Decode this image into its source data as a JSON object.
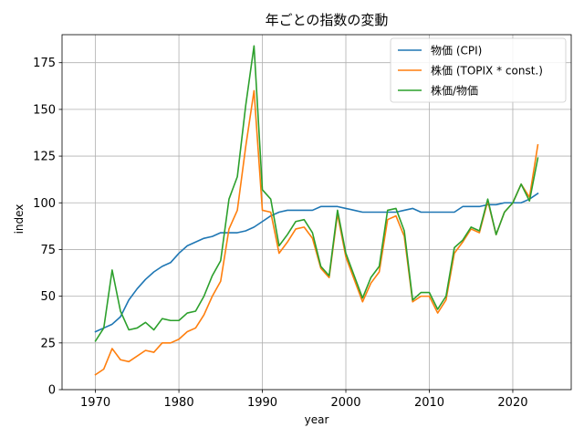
{
  "chart_data": {
    "type": "line",
    "title": "年ごとの指数の変動",
    "xlabel": "year",
    "ylabel": "index",
    "xlim": [
      1966,
      2027
    ],
    "ylim": [
      0,
      190
    ],
    "xticks": [
      1970,
      1980,
      1990,
      2000,
      2010,
      2020
    ],
    "yticks": [
      0,
      25,
      50,
      75,
      100,
      125,
      150,
      175
    ],
    "grid": true,
    "legend_position": "top-right",
    "x": [
      1970,
      1971,
      1972,
      1973,
      1974,
      1975,
      1976,
      1977,
      1978,
      1979,
      1980,
      1981,
      1982,
      1983,
      1984,
      1985,
      1986,
      1987,
      1988,
      1989,
      1990,
      1991,
      1992,
      1993,
      1994,
      1995,
      1996,
      1997,
      1998,
      1999,
      2000,
      2001,
      2002,
      2003,
      2004,
      2005,
      2006,
      2007,
      2008,
      2009,
      2010,
      2011,
      2012,
      2013,
      2014,
      2015,
      2016,
      2017,
      2018,
      2019,
      2020,
      2021,
      2022,
      2023
    ],
    "series": [
      {
        "name": "物価 (CPI)",
        "color": "#1f77b4",
        "values": [
          31,
          33,
          35,
          39,
          48,
          54,
          59,
          63,
          66,
          68,
          73,
          77,
          79,
          81,
          82,
          84,
          84,
          84,
          85,
          87,
          90,
          93,
          95,
          96,
          96,
          96,
          96,
          98,
          98,
          98,
          97,
          96,
          95,
          95,
          95,
          95,
          95,
          96,
          97,
          95,
          95,
          95,
          95,
          95,
          98,
          98,
          98,
          99,
          99,
          100,
          100,
          100,
          102,
          105
        ]
      },
      {
        "name": "株価 (TOPIX * const.)",
        "color": "#ff7f0e",
        "values": [
          8,
          11,
          22,
          16,
          15,
          18,
          21,
          20,
          25,
          25,
          27,
          31,
          33,
          40,
          50,
          58,
          86,
          96,
          130,
          160,
          96,
          95,
          73,
          79,
          86,
          87,
          81,
          65,
          60,
          94,
          71,
          59,
          47,
          57,
          63,
          91,
          93,
          82,
          47,
          50,
          50,
          41,
          48,
          73,
          79,
          86,
          84,
          101,
          83,
          95,
          100,
          110,
          103,
          131
        ]
      },
      {
        "name": "株価/物価",
        "color": "#2ca02c",
        "values": [
          26,
          33,
          64,
          42,
          32,
          33,
          36,
          32,
          38,
          37,
          37,
          41,
          42,
          50,
          61,
          69,
          102,
          114,
          152,
          184,
          107,
          102,
          77,
          83,
          90,
          91,
          84,
          66,
          61,
          96,
          73,
          61,
          49,
          60,
          66,
          96,
          97,
          85,
          48,
          52,
          52,
          43,
          50,
          76,
          80,
          87,
          85,
          102,
          83,
          95,
          100,
          110,
          101,
          124
        ]
      }
    ]
  }
}
